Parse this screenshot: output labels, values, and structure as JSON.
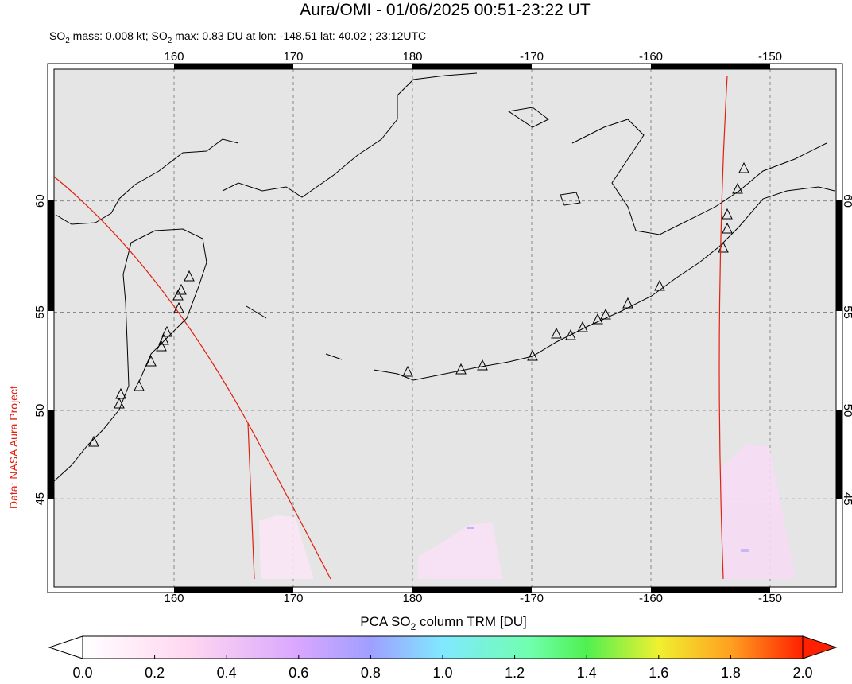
{
  "header": {
    "title": "Aura/OMI - 01/06/2025 00:51-23:22 UT",
    "subtitle": [
      "SO",
      "2",
      " mass: 0.008 kt; SO",
      "2",
      " max: 0.83 DU at lon: -148.51 lat: 40.02 ; 23:12UTC"
    ]
  },
  "map": {
    "lon_ticks": [
      160,
      170,
      180,
      -170,
      -160,
      -150
    ],
    "lat_ticks": [
      60,
      55,
      50,
      45
    ]
  },
  "credit": "Data: NASA Aura Project",
  "colorbar": {
    "label": [
      "PCA SO",
      "2",
      " column TRM [DU]"
    ],
    "ticks": [
      {
        "value": 0,
        "label": "0.0"
      },
      {
        "value": 0.2,
        "label": "0.2"
      },
      {
        "value": 0.4,
        "label": "0.4"
      },
      {
        "value": 0.6,
        "label": "0.6"
      },
      {
        "value": 0.8,
        "label": "0.8"
      },
      {
        "value": 1,
        "label": "1.0"
      },
      {
        "value": 1.2,
        "label": "1.2"
      },
      {
        "value": 1.4,
        "label": "1.4"
      },
      {
        "value": 1.6,
        "label": "1.6"
      },
      {
        "value": 1.8,
        "label": "1.8"
      },
      {
        "value": 2,
        "label": "2.0"
      }
    ]
  }
}
